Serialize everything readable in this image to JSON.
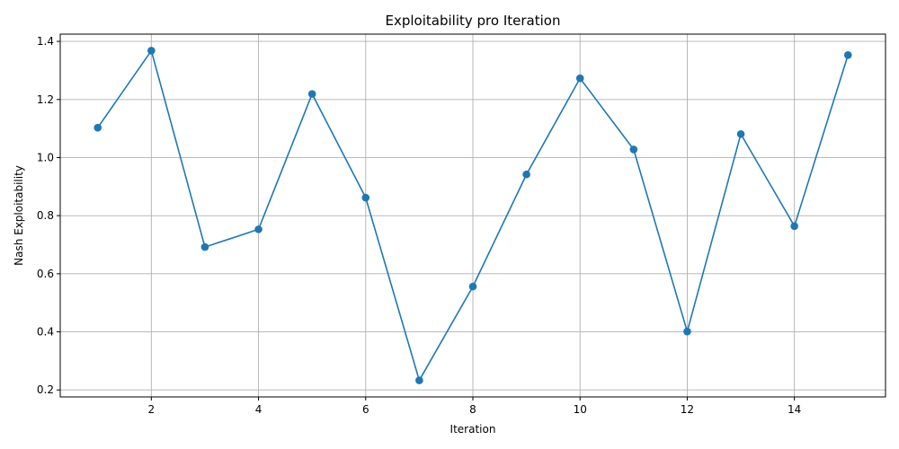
{
  "chart_data": {
    "type": "line",
    "title": "Exploitability pro Iteration",
    "xlabel": "Iteration",
    "ylabel": "Nash Exploitability",
    "x": [
      1,
      2,
      3,
      4,
      5,
      6,
      7,
      8,
      9,
      10,
      11,
      12,
      13,
      14,
      15
    ],
    "series": [
      {
        "values": [
          1.103,
          1.368,
          0.692,
          0.753,
          1.219,
          0.862,
          0.233,
          0.556,
          0.942,
          1.273,
          1.028,
          0.401,
          1.081,
          0.764,
          1.353
        ],
        "color": "#1f77b4",
        "marker": "circle"
      }
    ],
    "xlim": [
      0.3,
      15.7
    ],
    "ylim": [
      0.176,
      1.425
    ],
    "xticks": [
      2,
      4,
      6,
      8,
      10,
      12,
      14
    ],
    "yticks": [
      0.2,
      0.4,
      0.6,
      0.8,
      1.0,
      1.2,
      1.4
    ],
    "ytick_labels": [
      "0.2",
      "0.4",
      "0.6",
      "0.8",
      "1.0",
      "1.2",
      "1.4"
    ],
    "grid": true
  }
}
